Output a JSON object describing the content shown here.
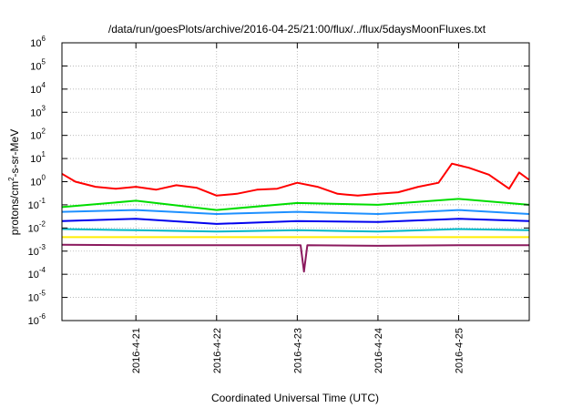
{
  "chart_data": {
    "type": "line",
    "title": "/data/run/goesPlots/archive/2016-04-25/21:00/flux/../flux/5daysMoonFluxes.txt",
    "xlabel": "Coordinated Universal Time (UTC)",
    "ylabel": "protons/cm2-s-sr-MeV",
    "ylabel_parts": {
      "prefix": "protons/cm",
      "sup": "2",
      "suffix": "-s-sr-MeV"
    },
    "y_scale": "log",
    "ylim": [
      1e-06,
      1000000.0
    ],
    "y_ticks": [
      {
        "exp": "-6",
        "value": 1e-06
      },
      {
        "exp": "-5",
        "value": 1e-05
      },
      {
        "exp": "-4",
        "value": 0.0001
      },
      {
        "exp": "-3",
        "value": 0.001
      },
      {
        "exp": "-2",
        "value": 0.01
      },
      {
        "exp": "-1",
        "value": 0.1
      },
      {
        "exp": "0",
        "value": 1
      },
      {
        "exp": "1",
        "value": 10
      },
      {
        "exp": "2",
        "value": 100
      },
      {
        "exp": "3",
        "value": 1000.0
      },
      {
        "exp": "4",
        "value": 10000.0
      },
      {
        "exp": "5",
        "value": 100000.0
      },
      {
        "exp": "6",
        "value": 1000000.0
      }
    ],
    "y_tick_base": "10",
    "xlim": [
      "2016-04-20 02:00",
      "2016-04-25 21:00"
    ],
    "x_ticks": [
      {
        "label": "2016-4-21",
        "date": "2016-04-21 00:00"
      },
      {
        "label": "2016-4-22",
        "date": "2016-04-22 00:00"
      },
      {
        "label": "2016-4-23",
        "date": "2016-04-23 00:00"
      },
      {
        "label": "2016-4-24",
        "date": "2016-04-24 00:00"
      },
      {
        "label": "2016-4-25",
        "date": "2016-04-25 00:00"
      }
    ],
    "grid": true,
    "series": [
      {
        "color": "#ff0000",
        "values": [
          [
            "2016-04-20 02:00",
            2.2
          ],
          [
            "2016-04-20 06:00",
            1.0
          ],
          [
            "2016-04-20 12:00",
            0.6
          ],
          [
            "2016-04-20 18:00",
            0.5
          ],
          [
            "2016-04-21 00:00",
            0.6
          ],
          [
            "2016-04-21 06:00",
            0.45
          ],
          [
            "2016-04-21 12:00",
            0.7
          ],
          [
            "2016-04-21 18:00",
            0.55
          ],
          [
            "2016-04-22 00:00",
            0.25
          ],
          [
            "2016-04-22 06:00",
            0.3
          ],
          [
            "2016-04-22 12:00",
            0.45
          ],
          [
            "2016-04-22 18:00",
            0.5
          ],
          [
            "2016-04-23 00:00",
            0.9
          ],
          [
            "2016-04-23 06:00",
            0.6
          ],
          [
            "2016-04-23 12:00",
            0.3
          ],
          [
            "2016-04-23 18:00",
            0.25
          ],
          [
            "2016-04-24 00:00",
            0.3
          ],
          [
            "2016-04-24 06:00",
            0.35
          ],
          [
            "2016-04-24 12:00",
            0.6
          ],
          [
            "2016-04-24 18:00",
            0.9
          ],
          [
            "2016-04-24 22:00",
            6.0
          ],
          [
            "2016-04-25 03:00",
            4.0
          ],
          [
            "2016-04-25 09:00",
            2.0
          ],
          [
            "2016-04-25 15:00",
            0.5
          ],
          [
            "2016-04-25 18:00",
            2.5
          ],
          [
            "2016-04-25 21:00",
            1.2
          ]
        ]
      },
      {
        "color": "#00dd00",
        "values": [
          [
            "2016-04-20 02:00",
            0.08
          ],
          [
            "2016-04-21 00:00",
            0.15
          ],
          [
            "2016-04-22 00:00",
            0.06
          ],
          [
            "2016-04-23 00:00",
            0.12
          ],
          [
            "2016-04-24 00:00",
            0.1
          ],
          [
            "2016-04-25 00:00",
            0.18
          ],
          [
            "2016-04-25 21:00",
            0.1
          ]
        ]
      },
      {
        "color": "#1e90ff",
        "values": [
          [
            "2016-04-20 02:00",
            0.05
          ],
          [
            "2016-04-21 00:00",
            0.06
          ],
          [
            "2016-04-22 00:00",
            0.04
          ],
          [
            "2016-04-23 00:00",
            0.05
          ],
          [
            "2016-04-24 00:00",
            0.04
          ],
          [
            "2016-04-25 00:00",
            0.06
          ],
          [
            "2016-04-25 21:00",
            0.04
          ]
        ]
      },
      {
        "color": "#0000ee",
        "values": [
          [
            "2016-04-20 02:00",
            0.02
          ],
          [
            "2016-04-21 00:00",
            0.025
          ],
          [
            "2016-04-22 00:00",
            0.015
          ],
          [
            "2016-04-23 00:00",
            0.02
          ],
          [
            "2016-04-24 00:00",
            0.018
          ],
          [
            "2016-04-25 00:00",
            0.025
          ],
          [
            "2016-04-25 21:00",
            0.02
          ]
        ]
      },
      {
        "color": "#00b8c8",
        "values": [
          [
            "2016-04-20 02:00",
            0.009
          ],
          [
            "2016-04-21 00:00",
            0.008
          ],
          [
            "2016-04-22 00:00",
            0.007
          ],
          [
            "2016-04-23 00:00",
            0.008
          ],
          [
            "2016-04-24 00:00",
            0.007
          ],
          [
            "2016-04-25 00:00",
            0.009
          ],
          [
            "2016-04-25 21:00",
            0.008
          ]
        ]
      },
      {
        "color": "#ffee00",
        "values": [
          [
            "2016-04-20 02:00",
            0.004
          ],
          [
            "2016-04-21 00:00",
            0.004
          ],
          [
            "2016-04-22 00:00",
            0.004
          ],
          [
            "2016-04-23 00:00",
            0.004
          ],
          [
            "2016-04-24 00:00",
            0.004
          ],
          [
            "2016-04-25 00:00",
            0.004
          ],
          [
            "2016-04-25 21:00",
            0.004
          ]
        ]
      },
      {
        "color": "#8b1a5e",
        "values": [
          [
            "2016-04-20 02:00",
            0.0019
          ],
          [
            "2016-04-21 00:00",
            0.0018
          ],
          [
            "2016-04-22 00:00",
            0.0018
          ],
          [
            "2016-04-23 01:00",
            0.0018
          ],
          [
            "2016-04-23 02:00",
            0.00013
          ],
          [
            "2016-04-23 03:00",
            0.0018
          ],
          [
            "2016-04-24 00:00",
            0.0017
          ],
          [
            "2016-04-25 00:00",
            0.0018
          ],
          [
            "2016-04-25 21:00",
            0.0018
          ]
        ]
      }
    ]
  }
}
